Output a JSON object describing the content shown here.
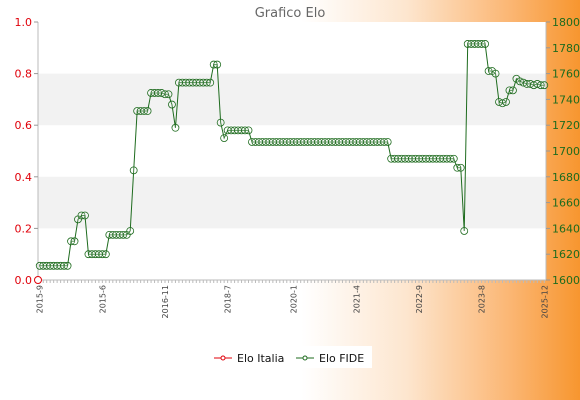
{
  "chart_data": {
    "type": "line",
    "title": "Grafico Elo",
    "xlabel": "",
    "ylabel": "",
    "ylim_left": [
      0.0,
      1.0
    ],
    "yticks_left": [
      "0.0",
      "0.2",
      "0.4",
      "0.6",
      "0.8",
      "1.0"
    ],
    "ylim_right": [
      1600,
      1800
    ],
    "yticks_right": [
      "1600",
      "1620",
      "1640",
      "1660",
      "1680",
      "1700",
      "1720",
      "1740",
      "1760",
      "1780",
      "1800"
    ],
    "grid": "horizontal bands",
    "legend_position": "bottom-center",
    "x_tick_labels": [
      "2015-9",
      "2015-6",
      "2016-11",
      "2018-7",
      "2020-1",
      "2021-4",
      "2022-9",
      "2023-8",
      "2025-12"
    ],
    "series": [
      {
        "name": "Elo Italia",
        "axis": "left",
        "color": "#e0000a",
        "values": [
          0.0
        ]
      },
      {
        "name": "Elo FIDE",
        "axis": "right",
        "color": "#1e6b1e",
        "values": [
          1611,
          1611,
          1611,
          1611,
          1611,
          1611,
          1611,
          1611,
          1611,
          1630,
          1630,
          1647,
          1650,
          1650,
          1620,
          1620,
          1620,
          1620,
          1620,
          1620,
          1635,
          1635,
          1635,
          1635,
          1635,
          1635,
          1638,
          1685,
          1731,
          1731,
          1731,
          1731,
          1745,
          1745,
          1745,
          1745,
          1744,
          1744,
          1736,
          1718,
          1753,
          1753,
          1753,
          1753,
          1753,
          1753,
          1753,
          1753,
          1753,
          1753,
          1767,
          1767,
          1722,
          1710,
          1716,
          1716,
          1716,
          1716,
          1716,
          1716,
          1716,
          1707,
          1707,
          1707,
          1707,
          1707,
          1707,
          1707,
          1707,
          1707,
          1707,
          1707,
          1707,
          1707,
          1707,
          1707,
          1707,
          1707,
          1707,
          1707,
          1707,
          1707,
          1707,
          1707,
          1707,
          1707,
          1707,
          1707,
          1707,
          1707,
          1707,
          1707,
          1707,
          1707,
          1707,
          1707,
          1707,
          1707,
          1707,
          1707,
          1707,
          1694,
          1694,
          1694,
          1694,
          1694,
          1694,
          1694,
          1694,
          1694,
          1694,
          1694,
          1694,
          1694,
          1694,
          1694,
          1694,
          1694,
          1694,
          1694,
          1687,
          1687,
          1638,
          1783,
          1783,
          1783,
          1783,
          1783,
          1783,
          1762,
          1762,
          1760,
          1738,
          1737,
          1738,
          1747,
          1747,
          1756,
          1754,
          1753,
          1752,
          1752,
          1751,
          1752,
          1751,
          1751
        ]
      }
    ]
  }
}
